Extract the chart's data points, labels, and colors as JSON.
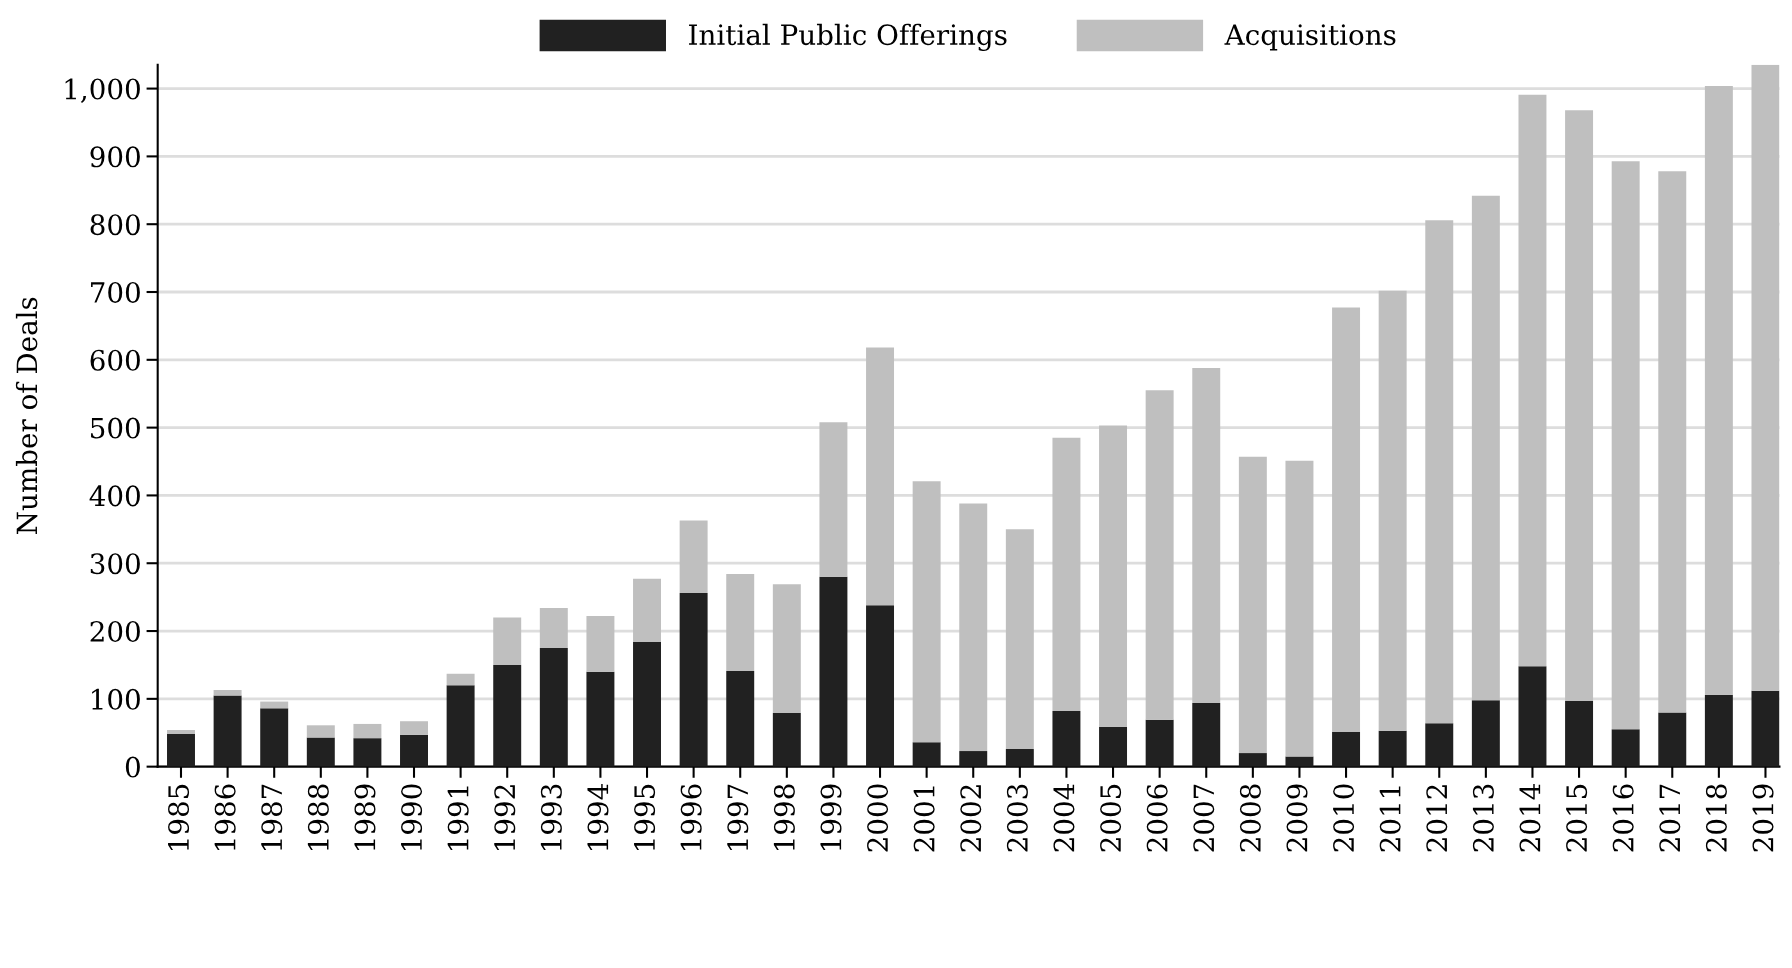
{
  "chart_data": {
    "type": "bar",
    "stacked": true,
    "ylabel": "Number of Deals",
    "categories": [
      "1985",
      "1986",
      "1987",
      "1988",
      "1989",
      "1990",
      "1991",
      "1992",
      "1993",
      "1994",
      "1995",
      "1996",
      "1997",
      "1998",
      "1999",
      "2000",
      "2001",
      "2002",
      "2003",
      "2004",
      "2005",
      "2006",
      "2007",
      "2008",
      "2009",
      "2010",
      "2011",
      "2012",
      "2013",
      "2014",
      "2015",
      "2016",
      "2017",
      "2018",
      "2019"
    ],
    "series": [
      {
        "name": "Initial Public Offerings",
        "color": "#212121",
        "values": [
          48,
          105,
          86,
          43,
          42,
          47,
          120,
          150,
          175,
          140,
          184,
          256,
          141,
          79,
          280,
          238,
          36,
          23,
          26,
          82,
          59,
          69,
          94,
          20,
          15,
          51,
          53,
          64,
          98,
          148,
          97,
          55,
          80,
          106,
          112
        ]
      },
      {
        "name": "Acquisitions",
        "color": "#bfbfbf",
        "values": [
          6,
          8,
          10,
          18,
          21,
          20,
          17,
          70,
          59,
          82,
          93,
          107,
          143,
          190,
          228,
          380,
          385,
          365,
          324,
          403,
          444,
          486,
          494,
          437,
          436,
          626,
          649,
          742,
          744,
          843,
          871,
          838,
          798,
          898,
          923
        ]
      }
    ],
    "ylim": [
      0,
      1035
    ],
    "yticks": [
      0,
      100,
      200,
      300,
      400,
      500,
      600,
      700,
      800,
      900,
      {
        "value": 1000,
        "label": "1,000"
      }
    ],
    "grid": "y",
    "legend": "top"
  }
}
